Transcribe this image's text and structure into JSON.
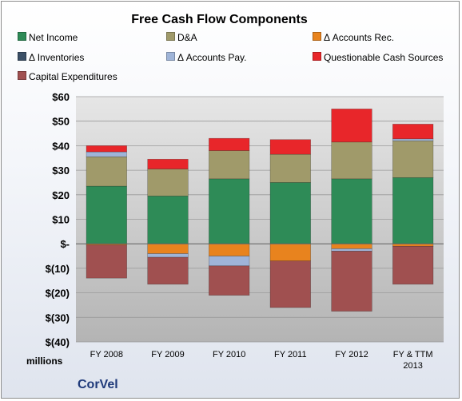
{
  "chart_data": {
    "type": "bar",
    "stacked": true,
    "title": "Free Cash Flow Components",
    "company": "CorVel",
    "units_label": "millions",
    "categories": [
      "FY 2008",
      "FY 2009",
      "FY 2010",
      "FY 2011",
      "FY 2012",
      "FY & TTM 2013"
    ],
    "ylim": [
      -40,
      60
    ],
    "yticks": [
      60,
      50,
      40,
      30,
      20,
      10,
      0,
      -10,
      -20,
      -30,
      -40
    ],
    "ytick_labels": [
      "$60",
      "$50",
      "$40",
      "$30",
      "$20",
      "$10",
      "$-",
      "$(10)",
      "$(20)",
      "$(30)",
      "$(40)"
    ],
    "grid": true,
    "legend_position": "top",
    "series": [
      {
        "name": "Net Income",
        "color": "#2e8b57",
        "values": [
          23.5,
          19.5,
          26.5,
          25,
          26.5,
          27
        ]
      },
      {
        "name": "D&A",
        "color": "#a09a6a",
        "values": [
          12,
          11,
          11.5,
          11.5,
          15,
          15
        ]
      },
      {
        "name": "Δ Accounts Rec.",
        "color": "#e8831e",
        "values": [
          -0.5,
          -4,
          -5,
          -7,
          -2,
          -1
        ]
      },
      {
        "name": "Δ Inventories",
        "color": "#3a4f66",
        "values": [
          0,
          0,
          0,
          0,
          0,
          0
        ]
      },
      {
        "name": "Δ Accounts Pay.",
        "color": "#9fb4d8",
        "values": [
          2,
          -1.5,
          -4,
          0,
          -1,
          0.8
        ]
      },
      {
        "name": "Questionable Cash Sources",
        "color": "#e8262a",
        "values": [
          2.5,
          4,
          5,
          6,
          13.5,
          6
        ]
      },
      {
        "name": "Capital Expenditures",
        "color": "#a05050",
        "values": [
          -13.5,
          -11,
          -12,
          -19,
          -24.5,
          -15.5
        ]
      }
    ]
  }
}
